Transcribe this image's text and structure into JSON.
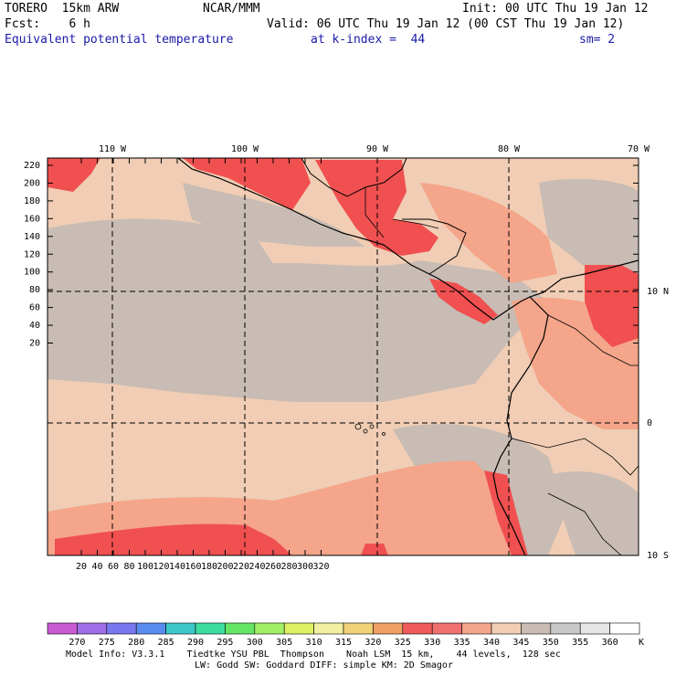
{
  "header": {
    "model": "TORERO  15km ARW",
    "center": "NCAR/MMM",
    "init": "Init: 00 UTC Thu 19 Jan 12",
    "fcst": "Fcst:    6 h",
    "valid": "Valid: 06 UTC Thu 19 Jan 12 (00 CST Thu 19 Jan 12)",
    "field": "Equivalent potential temperature",
    "level": "at k-index =  44",
    "smooth": "sm= 2"
  },
  "map": {
    "top_lon_labels": [
      "110 W",
      "100 W",
      "90 W",
      "80 W",
      "70 W"
    ],
    "right_lat_labels": [
      "10 N",
      "0",
      "10 S"
    ],
    "y_grid_ticks": [
      "220",
      "200",
      "180",
      "160",
      "140",
      "120",
      "100",
      "80",
      "60",
      "40",
      "20"
    ],
    "x_grid_ticks": [
      "20",
      "40",
      "60",
      "80",
      "100",
      "120",
      "140",
      "160",
      "180",
      "200",
      "220",
      "240",
      "260",
      "280",
      "300",
      "320"
    ],
    "colors": {
      "ocean_tan": "#f0cdb4",
      "ocean_gray": "#c8bcb4",
      "warm_salmon": "#f4a58a",
      "hot_red": "#f05050",
      "cool_gray": "#c8c8c8"
    }
  },
  "colorbar": {
    "labels": [
      "270",
      "275",
      "280",
      "285",
      "290",
      "295",
      "300",
      "305",
      "310",
      "315",
      "320",
      "325",
      "330",
      "335",
      "340",
      "345",
      "350",
      "355",
      "360"
    ],
    "unit": "K",
    "colors": [
      "#c85ad2",
      "#a06ee6",
      "#7878f0",
      "#5a8cf0",
      "#3cc8c8",
      "#3cdca0",
      "#64e664",
      "#a0f064",
      "#dcf064",
      "#f0f0a0",
      "#f0d278",
      "#f0a064",
      "#f05a5a",
      "#f07070",
      "#f4a58a",
      "#f0cdb4",
      "#c8bcb4",
      "#c8c8c8",
      "#e6e6e6",
      "#ffffff"
    ]
  },
  "footer": {
    "line1": "Model Info: V3.3.1    Tiedtke YSU PBL  Thompson    Noah LSM  15 km,    44 levels,  128 sec",
    "line2": "LW: Godd SW: Goddard DIFF: simple KM: 2D Smagor"
  }
}
